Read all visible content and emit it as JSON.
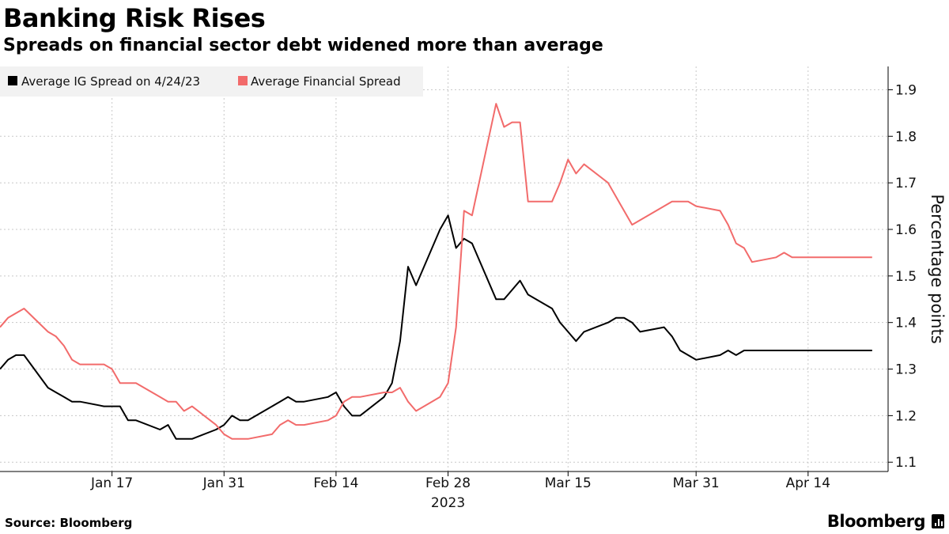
{
  "title": "Banking Risk Rises",
  "subtitle": "Spreads on financial sector debt widened more than average",
  "source": "Source: Bloomberg",
  "brand": "Bloomberg",
  "colors": {
    "ig": "#000000",
    "financial": "#f26b6b",
    "grid": "#c8c8c8",
    "legend_bg": "#f2f2f2"
  },
  "chart_data": {
    "type": "line",
    "title": "Banking Risk Rises",
    "subtitle": "Spreads on financial sector debt widened more than average",
    "xlabel": "2023",
    "ylabel": "Percentage points",
    "ylim": [
      1.08,
      1.95
    ],
    "yticks": [
      1.1,
      1.2,
      1.3,
      1.4,
      1.5,
      1.6,
      1.7,
      1.8,
      1.9
    ],
    "grid": true,
    "legend": "top-left",
    "x_start": "Jan 3",
    "x_ticks": [
      {
        "label": "Jan 17",
        "day": 14
      },
      {
        "label": "Jan 31",
        "day": 28
      },
      {
        "label": "Feb 14",
        "day": 42
      },
      {
        "label": "Feb 28",
        "day": 56
      },
      {
        "label": "Mar 15",
        "day": 71
      },
      {
        "label": "Mar 31",
        "day": 87
      },
      {
        "label": "Apr 14",
        "day": 101
      }
    ],
    "x_year_label": "2023",
    "x_year_day": 56,
    "x_range": [
      0,
      111
    ],
    "days": [
      0,
      1,
      2,
      3,
      6,
      7,
      8,
      9,
      10,
      13,
      14,
      15,
      16,
      17,
      20,
      21,
      22,
      23,
      24,
      27,
      28,
      29,
      30,
      31,
      34,
      35,
      36,
      37,
      38,
      41,
      42,
      43,
      44,
      45,
      48,
      49,
      50,
      51,
      52,
      55,
      56,
      57,
      58,
      59,
      62,
      63,
      64,
      65,
      66,
      69,
      70,
      71,
      72,
      73,
      76,
      77,
      78,
      79,
      80,
      83,
      84,
      85,
      86,
      87,
      90,
      91,
      92,
      93,
      94,
      97,
      98,
      99,
      100,
      101,
      104,
      105,
      106,
      107,
      108,
      109
    ],
    "series": [
      {
        "name": "Average IG Spread on 4/24/23",
        "color": "#000000",
        "values": [
          1.3,
          1.32,
          1.33,
          1.33,
          1.26,
          1.25,
          1.24,
          1.23,
          1.23,
          1.22,
          1.22,
          1.22,
          1.19,
          1.19,
          1.17,
          1.18,
          1.15,
          1.15,
          1.15,
          1.17,
          1.18,
          1.2,
          1.19,
          1.19,
          1.22,
          1.23,
          1.24,
          1.23,
          1.23,
          1.24,
          1.25,
          1.22,
          1.2,
          1.2,
          1.24,
          1.27,
          1.36,
          1.52,
          1.48,
          1.6,
          1.63,
          1.56,
          1.58,
          1.57,
          1.45,
          1.45,
          1.47,
          1.49,
          1.46,
          1.43,
          1.4,
          1.38,
          1.36,
          1.38,
          1.4,
          1.41,
          1.41,
          1.4,
          1.38,
          1.39,
          1.37,
          1.34,
          1.33,
          1.32,
          1.33,
          1.34,
          1.33,
          1.34,
          1.34,
          1.34,
          1.34,
          1.34,
          1.34,
          1.34,
          1.34,
          1.34,
          1.34,
          1.34,
          1.34,
          1.34
        ]
      },
      {
        "name": "Average Financial Spread",
        "color": "#f26b6b",
        "values": [
          1.39,
          1.41,
          1.42,
          1.43,
          1.38,
          1.37,
          1.35,
          1.32,
          1.31,
          1.31,
          1.3,
          1.27,
          1.27,
          1.27,
          1.24,
          1.23,
          1.23,
          1.21,
          1.22,
          1.18,
          1.16,
          1.15,
          1.15,
          1.15,
          1.16,
          1.18,
          1.19,
          1.18,
          1.18,
          1.19,
          1.2,
          1.23,
          1.24,
          1.24,
          1.25,
          1.25,
          1.26,
          1.23,
          1.21,
          1.24,
          1.27,
          1.39,
          1.64,
          1.63,
          1.87,
          1.82,
          1.83,
          1.83,
          1.66,
          1.66,
          1.7,
          1.75,
          1.72,
          1.74,
          1.7,
          1.67,
          1.64,
          1.61,
          1.62,
          1.65,
          1.66,
          1.66,
          1.66,
          1.65,
          1.64,
          1.61,
          1.57,
          1.56,
          1.53,
          1.54,
          1.55,
          1.54,
          1.54,
          1.54,
          1.54,
          1.54,
          1.54,
          1.54,
          1.54,
          1.54
        ]
      }
    ]
  }
}
